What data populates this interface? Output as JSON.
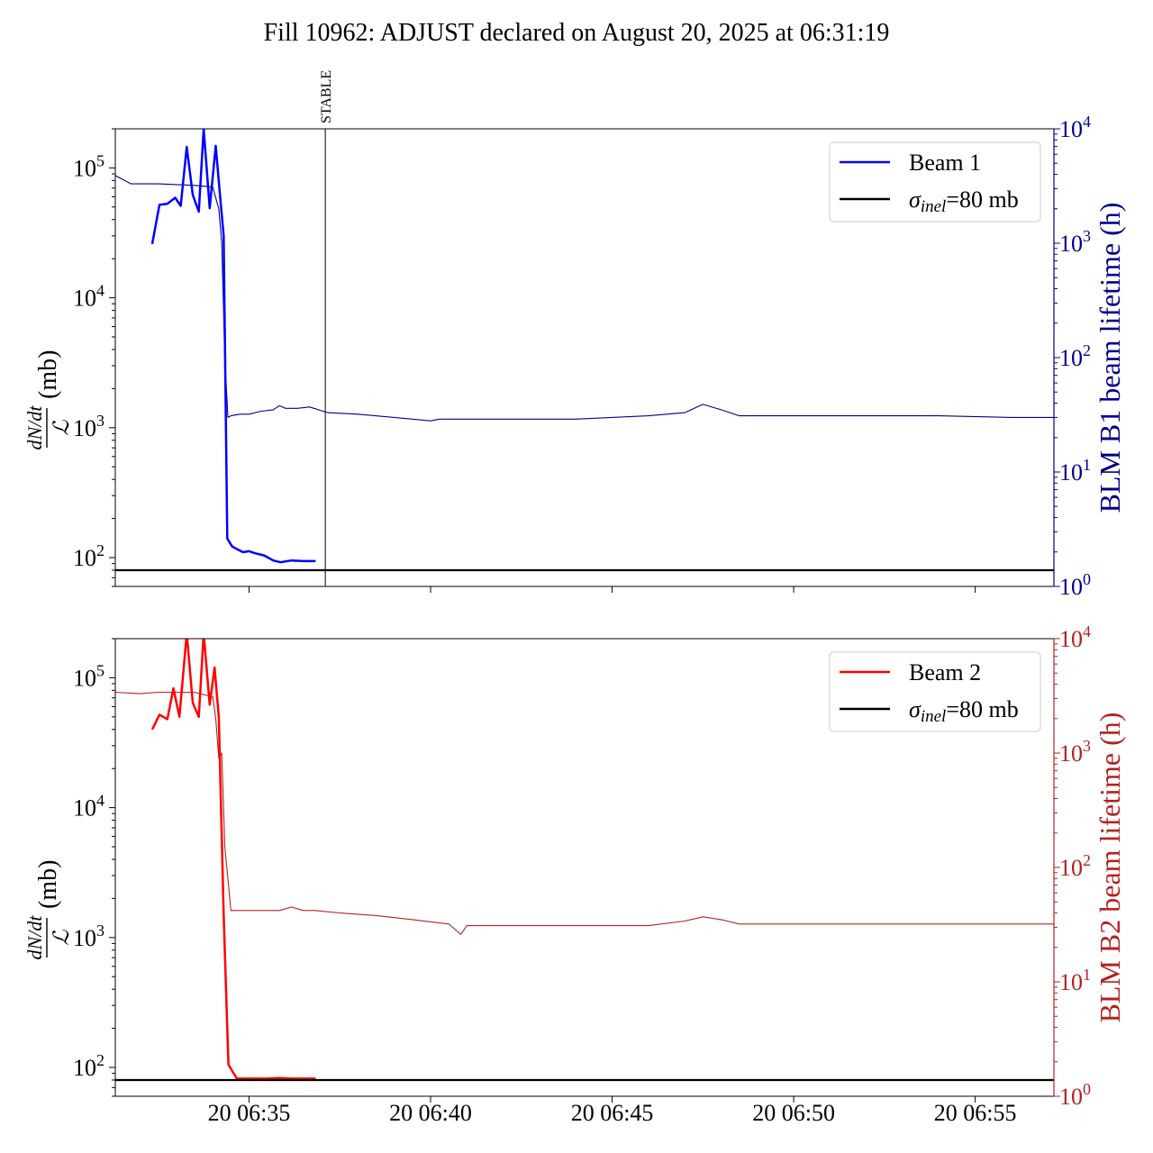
{
  "page_title": "Fill 10962: ADJUST declared on August 20, 2025 at 06:31:19",
  "colors": {
    "beam1": "#0000ff",
    "beam1_lifetime": "#00008b",
    "beam2": "#ff0000",
    "beam2_lifetime": "#b22222",
    "reference": "#000000"
  },
  "chart_data": [
    {
      "type": "line",
      "panel": "top",
      "title": "",
      "xlabel": "",
      "ylabel_left": "dN/dt / ℒ (mb)",
      "ylabel_left_parts": {
        "numerator": "dN/dt",
        "denominator": "ℒ",
        "unit": "(mb)"
      },
      "ylabel_right": "BLM B1 beam lifetime (h)",
      "y_scale": "log",
      "ylim_left": [
        60,
        200000
      ],
      "ylim_right": [
        1,
        10000
      ],
      "xlim": [
        "06:31:19",
        "06:57:10"
      ],
      "x_tick_labels": [],
      "x_ticks": [
        "06:35",
        "06:40",
        "06:45",
        "06:50",
        "06:55"
      ],
      "y_ticks_left": [
        {
          "v": 100,
          "base": "10",
          "exp": "2"
        },
        {
          "v": 1000,
          "base": "10",
          "exp": "3"
        },
        {
          "v": 10000,
          "base": "10",
          "exp": "4"
        },
        {
          "v": 100000,
          "base": "10",
          "exp": "5"
        }
      ],
      "y_ticks_right": [
        {
          "v": 1,
          "base": "10",
          "exp": "0"
        },
        {
          "v": 10,
          "base": "10",
          "exp": "1"
        },
        {
          "v": 100,
          "base": "10",
          "exp": "2"
        },
        {
          "v": 1000,
          "base": "10",
          "exp": "3"
        },
        {
          "v": 10000,
          "base": "10",
          "exp": "4"
        }
      ],
      "vline": {
        "x": "06:37:06",
        "label": "STABLE"
      },
      "legend": {
        "placement": "top-right",
        "entries": [
          {
            "label": "Beam 1",
            "color_key": "beam1"
          },
          {
            "label_main": "σ",
            "label_sub": "inel",
            "label_rest": "=80 mb",
            "color_key": "reference"
          }
        ]
      },
      "series": [
        {
          "name": "Beam 1",
          "axis": "left",
          "color_key": "beam1",
          "width": 2.5,
          "x": [
            "06:32:20",
            "06:32:32",
            "06:32:45",
            "06:32:58",
            "06:33:07",
            "06:33:17",
            "06:33:27",
            "06:33:37",
            "06:33:45",
            "06:33:55",
            "06:34:05",
            "06:34:12",
            "06:34:18",
            "06:34:24",
            "06:34:32",
            "06:34:42",
            "06:34:50",
            "06:35:00",
            "06:35:10",
            "06:35:25",
            "06:35:40",
            "06:35:52",
            "06:36:10",
            "06:36:30",
            "06:36:50"
          ],
          "y": [
            26000,
            52000,
            53000,
            59000,
            51000,
            145000,
            62000,
            46000,
            200000,
            49000,
            148000,
            62000,
            30000,
            140,
            122,
            115,
            110,
            112,
            108,
            104,
            95,
            92,
            95,
            94,
            94
          ]
        },
        {
          "name": "BLM B1 beam lifetime",
          "axis": "right",
          "color_key": "beam1_lifetime",
          "width": 1.1,
          "x": [
            "06:31:19",
            "06:31:45",
            "06:32:30",
            "06:33:30",
            "06:34:00",
            "06:34:10",
            "06:34:15",
            "06:34:20",
            "06:34:25",
            "06:34:30",
            "06:34:45",
            "06:35:00",
            "06:35:20",
            "06:35:40",
            "06:35:50",
            "06:36:00",
            "06:36:20",
            "06:36:40",
            "06:37:10",
            "06:38:00",
            "06:39:00",
            "06:39:30",
            "06:40:00",
            "06:40:15",
            "06:40:40",
            "06:42:00",
            "06:44:00",
            "06:46:00",
            "06:47:00",
            "06:47:30",
            "06:48:00",
            "06:48:30",
            "06:50:00",
            "06:52:00",
            "06:54:00",
            "06:56:00",
            "06:57:10"
          ],
          "y": [
            3900,
            3300,
            3300,
            3200,
            3100,
            2000,
            1000,
            100,
            30,
            31,
            32,
            32,
            34,
            35,
            38,
            36,
            36,
            37,
            33,
            32,
            30,
            29,
            28,
            29,
            29,
            29,
            29,
            31,
            33,
            39,
            35,
            31,
            31,
            31,
            31,
            30,
            30
          ]
        }
      ],
      "reference_line": {
        "y": 80,
        "axis": "left",
        "color_key": "reference"
      }
    },
    {
      "type": "line",
      "panel": "bottom",
      "title": "",
      "xlabel": "",
      "ylabel_left": "dN/dt / ℒ (mb)",
      "ylabel_left_parts": {
        "numerator": "dN/dt",
        "denominator": "ℒ",
        "unit": "(mb)"
      },
      "ylabel_right": "BLM B2 beam lifetime (h)",
      "y_scale": "log",
      "ylim_left": [
        60,
        200000
      ],
      "ylim_right": [
        1,
        10000
      ],
      "xlim": [
        "06:31:19",
        "06:57:10"
      ],
      "x_tick_labels": [
        "20 06:35",
        "20 06:40",
        "20 06:45",
        "20 06:50",
        "20 06:55"
      ],
      "x_ticks": [
        "06:35",
        "06:40",
        "06:45",
        "06:50",
        "06:55"
      ],
      "y_ticks_left": [
        {
          "v": 100,
          "base": "10",
          "exp": "2"
        },
        {
          "v": 1000,
          "base": "10",
          "exp": "3"
        },
        {
          "v": 10000,
          "base": "10",
          "exp": "4"
        },
        {
          "v": 100000,
          "base": "10",
          "exp": "5"
        }
      ],
      "y_ticks_right": [
        {
          "v": 1,
          "base": "10",
          "exp": "0"
        },
        {
          "v": 10,
          "base": "10",
          "exp": "1"
        },
        {
          "v": 100,
          "base": "10",
          "exp": "2"
        },
        {
          "v": 1000,
          "base": "10",
          "exp": "3"
        },
        {
          "v": 10000,
          "base": "10",
          "exp": "4"
        }
      ],
      "legend": {
        "placement": "top-right",
        "entries": [
          {
            "label": "Beam 2",
            "color_key": "beam2"
          },
          {
            "label_main": "σ",
            "label_sub": "inel",
            "label_rest": "=80 mb",
            "color_key": "reference"
          }
        ]
      },
      "series": [
        {
          "name": "Beam 2",
          "axis": "left",
          "color_key": "beam2",
          "width": 2.5,
          "x": [
            "06:32:20",
            "06:32:32",
            "06:32:45",
            "06:32:55",
            "06:33:05",
            "06:33:17",
            "06:33:27",
            "06:33:37",
            "06:33:45",
            "06:33:55",
            "06:34:03",
            "06:34:10",
            "06:34:18",
            "06:34:26",
            "06:34:40",
            "06:35:00",
            "06:35:30",
            "06:35:50",
            "06:36:10",
            "06:36:50"
          ],
          "y": [
            40000,
            52000,
            48000,
            83000,
            50000,
            220000,
            64000,
            50000,
            220000,
            62000,
            120000,
            50000,
            1500,
            105,
            82,
            82,
            82,
            83,
            82,
            82
          ]
        },
        {
          "name": "BLM B2 beam lifetime",
          "axis": "right",
          "color_key": "beam2_lifetime",
          "width": 1.1,
          "x": [
            "06:31:19",
            "06:32:00",
            "06:32:30",
            "06:33:30",
            "06:34:00",
            "06:34:05",
            "06:34:10",
            "06:34:15",
            "06:34:20",
            "06:34:25",
            "06:34:30",
            "06:35:00",
            "06:35:30",
            "06:35:50",
            "06:36:10",
            "06:36:30",
            "06:36:50",
            "06:37:30",
            "06:38:30",
            "06:39:30",
            "06:40:30",
            "06:40:50",
            "06:41:00",
            "06:43:00",
            "06:45:00",
            "06:46:00",
            "06:47:00",
            "06:47:30",
            "06:48:00",
            "06:48:30",
            "06:50:00",
            "06:52:00",
            "06:54:00",
            "06:56:00",
            "06:57:10"
          ],
          "y": [
            3400,
            3300,
            3400,
            3400,
            3100,
            2000,
            900,
            1000,
            150,
            80,
            42,
            42,
            42,
            42,
            45,
            42,
            42,
            40,
            38,
            35,
            32,
            26,
            31,
            31,
            31,
            31,
            34,
            37,
            35,
            32,
            32,
            32,
            32,
            32,
            32
          ]
        }
      ],
      "reference_line": {
        "y": 80,
        "axis": "left",
        "color_key": "reference"
      }
    }
  ]
}
